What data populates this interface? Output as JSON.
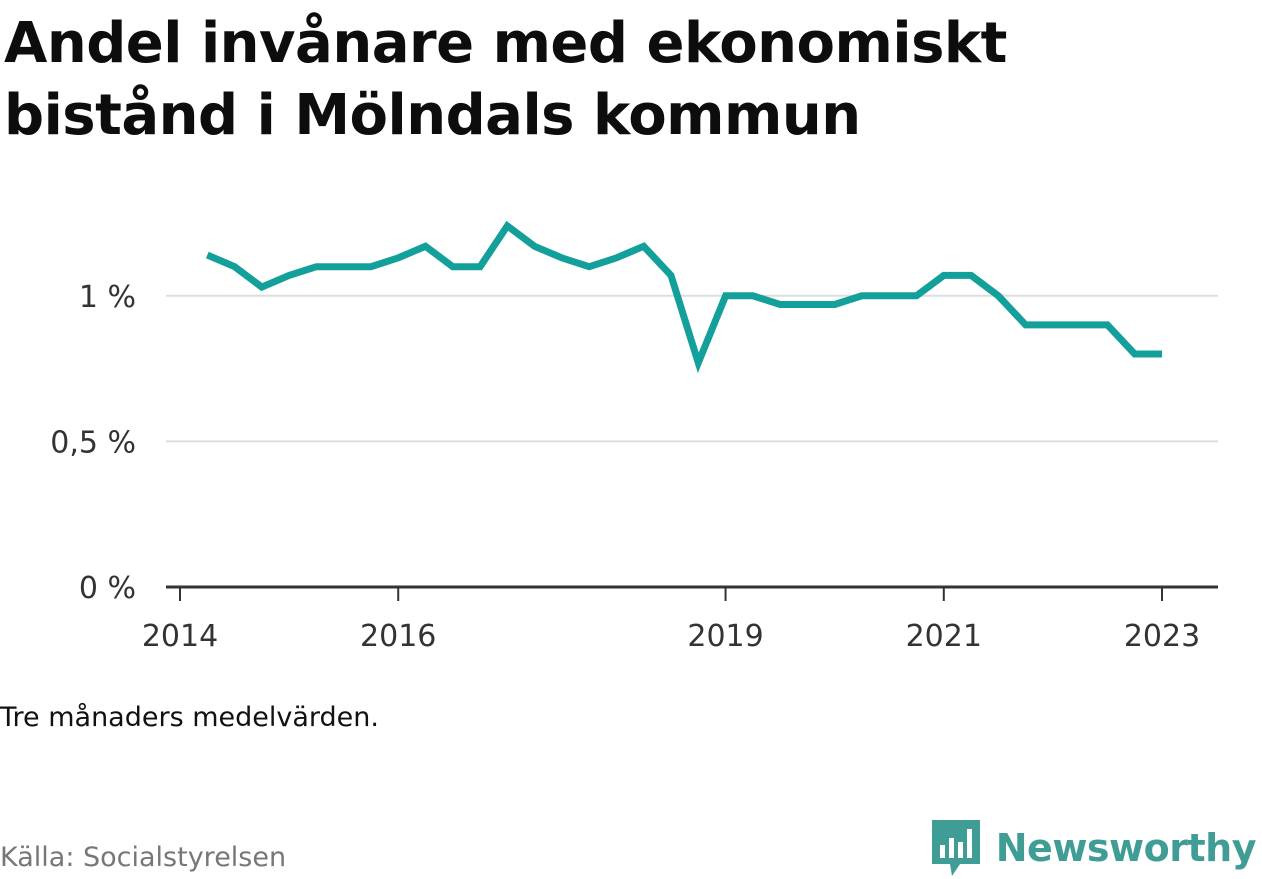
{
  "title": "Andel invånare med ekonomiskt bistånd i Mölndals kommun",
  "note": "Tre månaders medelvärden.",
  "source": "Källa: Socialstyrelsen",
  "brand": {
    "name": "Newsworthy",
    "icon": "newsworthy-logo-icon",
    "color": "#3f9d96"
  },
  "chart_data": {
    "type": "line",
    "title": "Andel invånare med ekonomiskt bistånd i Mölndals kommun",
    "xlabel": "",
    "ylabel": "",
    "grid": true,
    "ylim": [
      0,
      1.25
    ],
    "xlim": [
      "2014-01",
      "2023-06"
    ],
    "y_ticks": [
      {
        "value": 0,
        "label": "0 %"
      },
      {
        "value": 0.5,
        "label": "0,5 %"
      },
      {
        "value": 1,
        "label": "1 %"
      }
    ],
    "x_ticks": [
      {
        "value": "2014-01",
        "label": "2014"
      },
      {
        "value": "2016-01",
        "label": "2016"
      },
      {
        "value": "2019-01",
        "label": "2019"
      },
      {
        "value": "2021-01",
        "label": "2021"
      },
      {
        "value": "2023-01",
        "label": "2023"
      }
    ],
    "color": "#14a09a",
    "series": [
      {
        "points": [
          [
            "2014-04",
            1.14
          ],
          [
            "2014-07",
            1.1
          ],
          [
            "2014-10",
            1.03
          ],
          [
            "2015-01",
            1.07
          ],
          [
            "2015-04",
            1.1
          ],
          [
            "2015-07",
            1.1
          ],
          [
            "2015-10",
            1.1
          ],
          [
            "2016-01",
            1.13
          ],
          [
            "2016-04",
            1.17
          ],
          [
            "2016-07",
            1.1
          ],
          [
            "2016-10",
            1.1
          ],
          [
            "2017-01",
            1.24
          ],
          [
            "2017-04",
            1.17
          ],
          [
            "2017-07",
            1.13
          ],
          [
            "2017-10",
            1.1
          ],
          [
            "2018-01",
            1.13
          ],
          [
            "2018-04",
            1.17
          ],
          [
            "2018-07",
            1.07
          ],
          [
            "2018-10",
            0.77
          ],
          [
            "2019-01",
            1.0
          ],
          [
            "2019-04",
            1.0
          ],
          [
            "2019-07",
            0.97
          ],
          [
            "2019-10",
            0.97
          ],
          [
            "2020-01",
            0.97
          ],
          [
            "2020-04",
            1.0
          ],
          [
            "2020-07",
            1.0
          ],
          [
            "2020-10",
            1.0
          ],
          [
            "2021-01",
            1.07
          ],
          [
            "2021-04",
            1.07
          ],
          [
            "2021-07",
            1.0
          ],
          [
            "2021-10",
            0.9
          ],
          [
            "2022-01",
            0.9
          ],
          [
            "2022-04",
            0.9
          ],
          [
            "2022-07",
            0.9
          ],
          [
            "2022-10",
            0.8
          ],
          [
            "2023-01",
            0.8
          ]
        ]
      }
    ]
  }
}
